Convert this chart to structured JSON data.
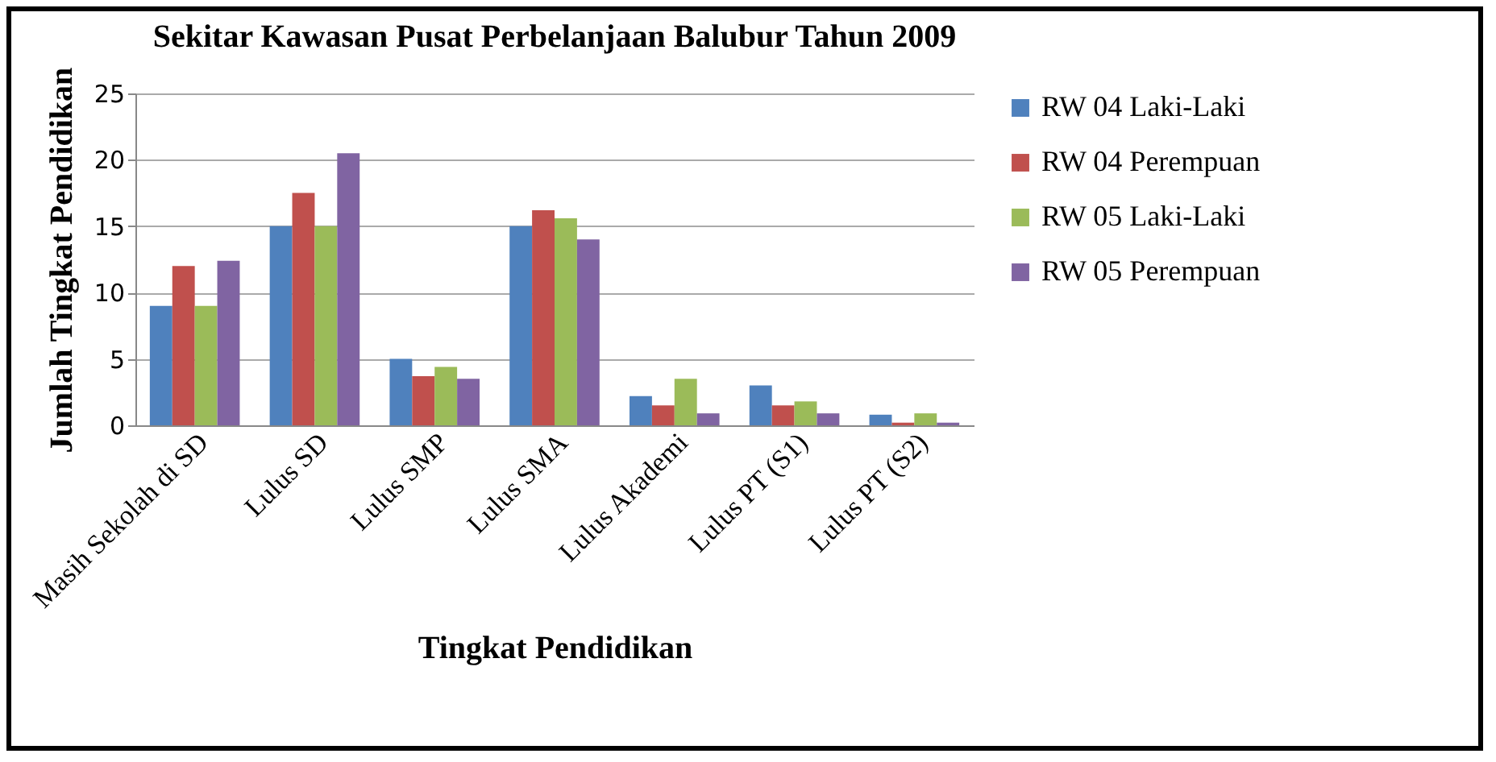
{
  "chart_data": {
    "type": "bar",
    "title": "Sekitar Kawasan Pusat Perbelanjaan Balubur Tahun 2009",
    "xlabel": "Tingkat Pendidikan",
    "ylabel": "Jumlah Tingkat Pendidikan",
    "categories": [
      "Masih Sekolah di SD",
      "Lulus SD",
      "Lulus SMP",
      "Lulus SMA",
      "Lulus Akademi",
      "Lulus PT (S1)",
      "Lulus PT (S2)"
    ],
    "series": [
      {
        "name": "RW 04 Laki-Laki",
        "color": "#4f81bd",
        "values": [
          9,
          15,
          5,
          15,
          2.2,
          3,
          0.8
        ]
      },
      {
        "name": "RW 04 Perempuan",
        "color": "#c0504d",
        "values": [
          12,
          17.5,
          3.7,
          16.2,
          1.5,
          1.5,
          0.2
        ]
      },
      {
        "name": "RW 05 Laki-Laki",
        "color": "#9bbb59",
        "values": [
          9,
          15,
          4.4,
          15.6,
          3.5,
          1.8,
          0.9
        ]
      },
      {
        "name": "RW 05 Perempuan",
        "color": "#8064a2",
        "values": [
          12.4,
          20.5,
          3.5,
          14,
          0.9,
          0.9,
          0.2
        ]
      }
    ],
    "ylim": [
      0,
      25
    ],
    "yticks": [
      0,
      5,
      10,
      15,
      20,
      25
    ],
    "grid": "y",
    "legend": "right"
  }
}
